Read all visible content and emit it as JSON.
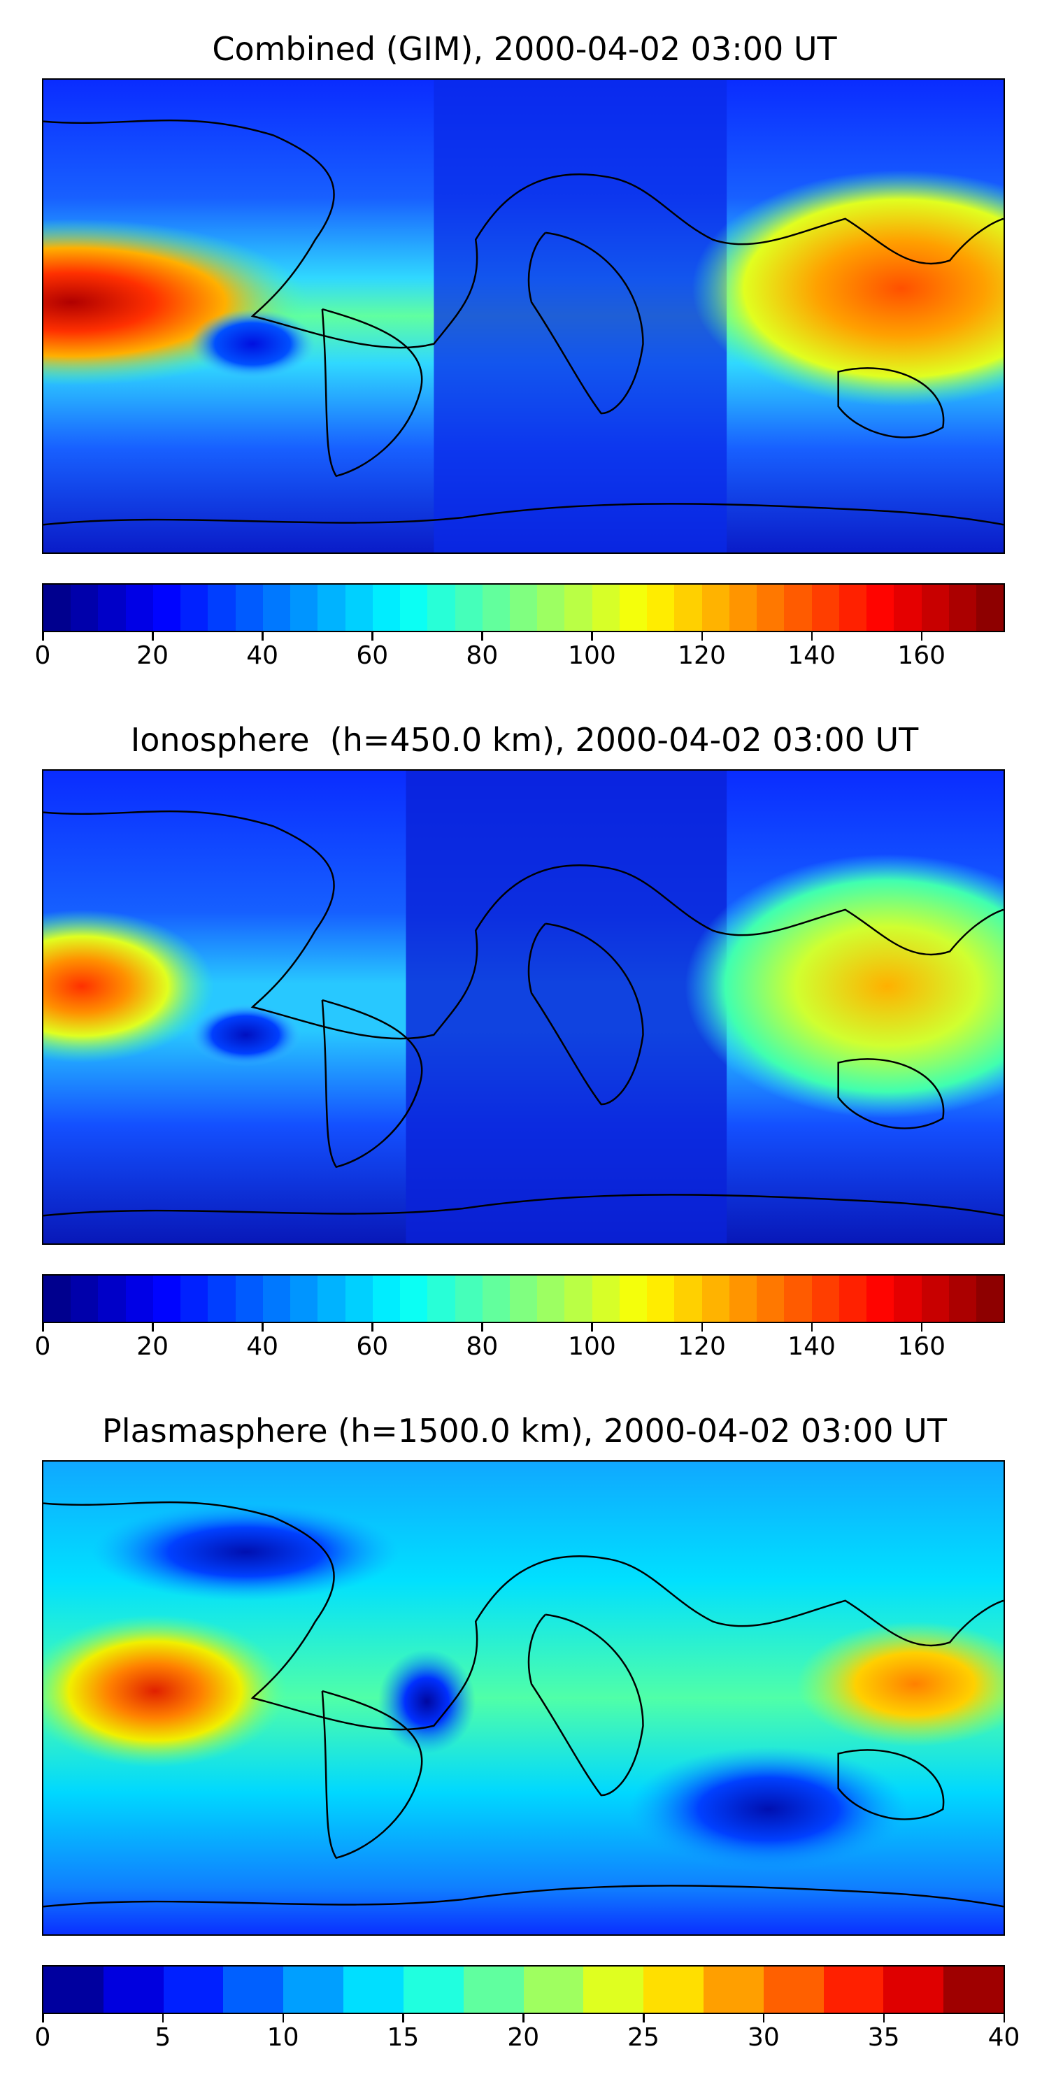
{
  "panels": [
    {
      "title": "Combined (GIM), 2000-04-02 03:00 UT",
      "colorbar": {
        "min": 0,
        "max": 175,
        "levels": 35,
        "ticks": [
          "0",
          "20",
          "40",
          "60",
          "80",
          "100",
          "120",
          "140",
          "160"
        ],
        "tick_values": [
          0,
          20,
          40,
          60,
          80,
          100,
          120,
          140,
          160
        ]
      }
    },
    {
      "title": "Ionosphere  (h=450.0 km), 2000-04-02 03:00 UT",
      "colorbar": {
        "min": 0,
        "max": 175,
        "levels": 35,
        "ticks": [
          "0",
          "20",
          "40",
          "60",
          "80",
          "100",
          "120",
          "140",
          "160"
        ],
        "tick_values": [
          0,
          20,
          40,
          60,
          80,
          100,
          120,
          140,
          160
        ]
      }
    },
    {
      "title": "Plasmasphere (h=1500.0 km), 2000-04-02 03:00 UT",
      "colorbar": {
        "min": 0,
        "max": 40,
        "levels": 16,
        "ticks": [
          "0",
          "5",
          "10",
          "15",
          "20",
          "25",
          "30",
          "35",
          "40"
        ],
        "tick_values": [
          0,
          5,
          10,
          15,
          20,
          25,
          30,
          35,
          40
        ]
      }
    }
  ],
  "colormap": "jet",
  "map_projection": "PlateCarree (global)",
  "coastline_color": "#000000"
}
